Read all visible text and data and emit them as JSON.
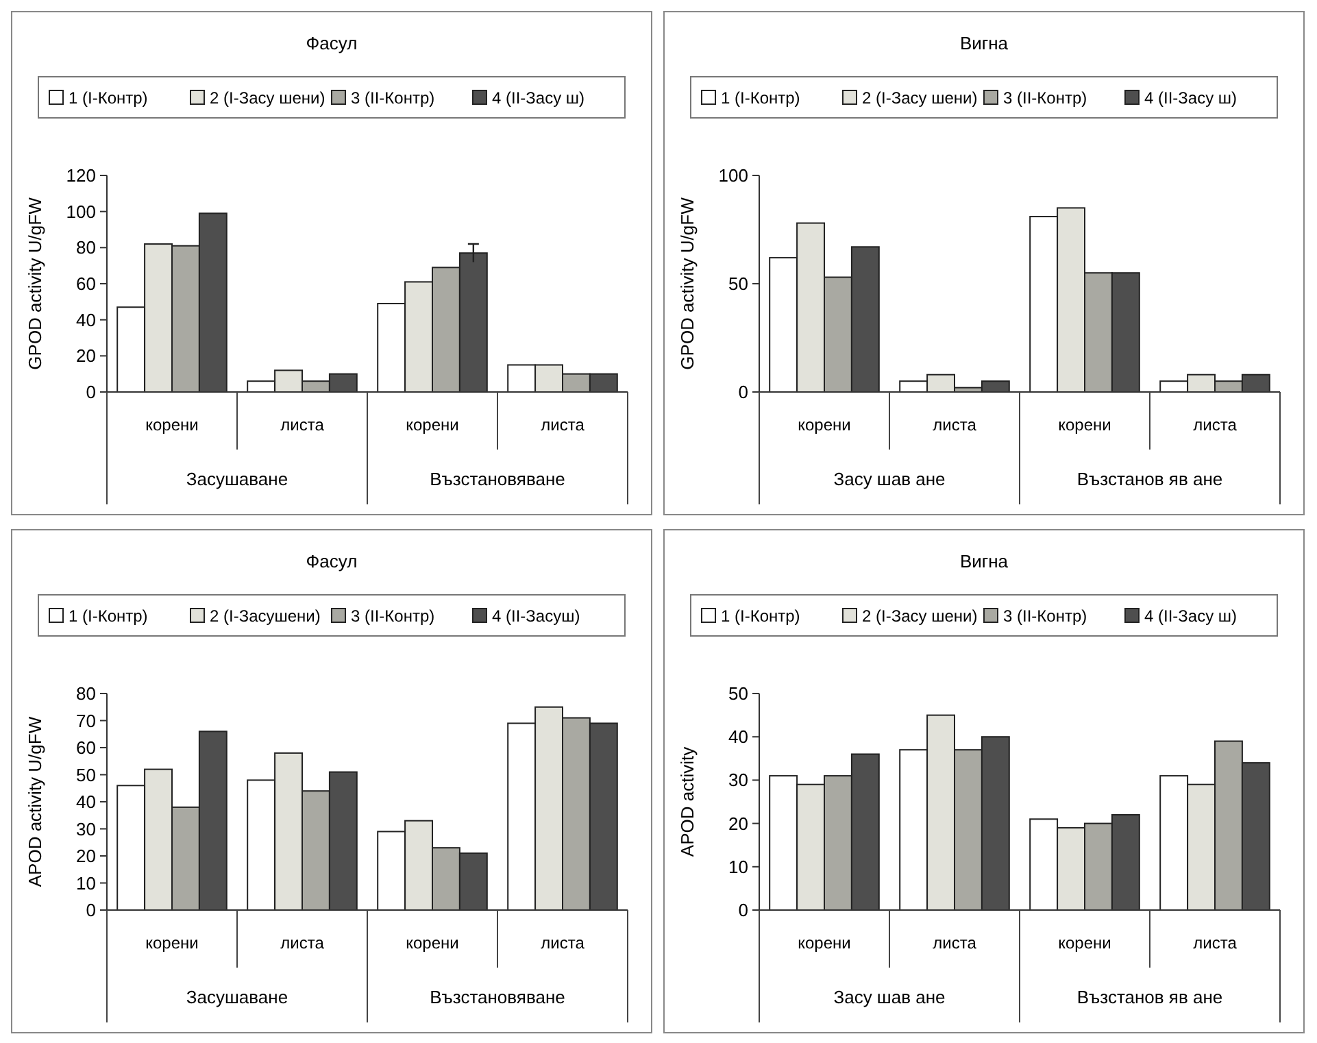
{
  "chart_data": [
    {
      "type": "bar",
      "title": "Фасул",
      "ylabel": "GPOD activity U/gFW",
      "categories": [
        "корени",
        "листа",
        "корени",
        "листа"
      ],
      "annotations": [
        "Засушаване",
        "Възстановяване"
      ],
      "ylim": [
        0,
        120
      ],
      "yticks": [
        0,
        20,
        40,
        60,
        80,
        100,
        120
      ],
      "legend": "top",
      "series": [
        {
          "name": "1 (I-Контр)",
          "color": "#ffffff",
          "values": [
            47,
            6,
            49,
            15
          ]
        },
        {
          "name": "2 (I-Засу шени)",
          "color": "#e2e2da",
          "values": [
            82,
            12,
            61,
            15
          ]
        },
        {
          "name": "3 (II-Контр)",
          "color": "#a9a9a2",
          "values": [
            81,
            6,
            69,
            10
          ]
        },
        {
          "name": "4 (II-Засу ш)",
          "color": "#4e4e4e",
          "values": [
            99,
            10,
            77,
            10
          ],
          "errors": [
            null,
            null,
            5,
            null
          ]
        }
      ]
    },
    {
      "type": "bar",
      "title": "Вигна",
      "ylabel": "GPOD activity U/gFW",
      "categories": [
        "корени",
        "листа",
        "корени",
        "листа"
      ],
      "annotations": [
        "Засу шав ане",
        "Възстанов яв ане"
      ],
      "ylim": [
        0,
        100
      ],
      "yticks": [
        0,
        50,
        100
      ],
      "legend": "top",
      "series": [
        {
          "name": "1 (I-Контр)",
          "color": "#ffffff",
          "values": [
            62,
            5,
            81,
            5
          ]
        },
        {
          "name": "2 (I-Засу шени)",
          "color": "#e2e2da",
          "values": [
            78,
            8,
            85,
            8
          ]
        },
        {
          "name": "3 (II-Контр)",
          "color": "#a9a9a2",
          "values": [
            53,
            2,
            55,
            5
          ]
        },
        {
          "name": "4 (II-Засу ш)",
          "color": "#4e4e4e",
          "values": [
            67,
            5,
            55,
            8
          ]
        }
      ]
    },
    {
      "type": "bar",
      "title": "Фасул",
      "ylabel": "APOD activity U/gFW",
      "categories": [
        "корени",
        "листа",
        "корени",
        "листа"
      ],
      "annotations": [
        "Засушаване",
        "Възстановяване"
      ],
      "ylim": [
        0,
        80
      ],
      "yticks": [
        0,
        10,
        20,
        30,
        40,
        50,
        60,
        70,
        80
      ],
      "legend": "top",
      "series": [
        {
          "name": "1 (I-Контр)",
          "color": "#ffffff",
          "values": [
            46,
            48,
            29,
            69
          ]
        },
        {
          "name": "2 (I-Засушени)",
          "color": "#e2e2da",
          "values": [
            52,
            58,
            33,
            75
          ]
        },
        {
          "name": "3 (II-Контр)",
          "color": "#a9a9a2",
          "values": [
            38,
            44,
            23,
            71
          ]
        },
        {
          "name": "4 (II-Засуш)",
          "color": "#4e4e4e",
          "values": [
            66,
            51,
            21,
            69
          ]
        }
      ]
    },
    {
      "type": "bar",
      "title": "Вигна",
      "ylabel": "APOD activity",
      "categories": [
        "корени",
        "листа",
        "корени",
        "листа"
      ],
      "annotations": [
        "Засу шав ане",
        "Възстанов яв ане"
      ],
      "ylim": [
        0,
        50
      ],
      "yticks": [
        0,
        10,
        20,
        30,
        40,
        50
      ],
      "legend": "top",
      "series": [
        {
          "name": "1 (I-Контр)",
          "color": "#ffffff",
          "values": [
            31,
            37,
            21,
            31
          ]
        },
        {
          "name": "2 (I-Засу шени)",
          "color": "#e2e2da",
          "values": [
            29,
            45,
            19,
            29
          ]
        },
        {
          "name": "3 (II-Контр)",
          "color": "#a9a9a2",
          "values": [
            31,
            37,
            20,
            39
          ]
        },
        {
          "name": "4 (II-Засу ш)",
          "color": "#4e4e4e",
          "values": [
            36,
            40,
            22,
            34
          ]
        }
      ]
    }
  ]
}
